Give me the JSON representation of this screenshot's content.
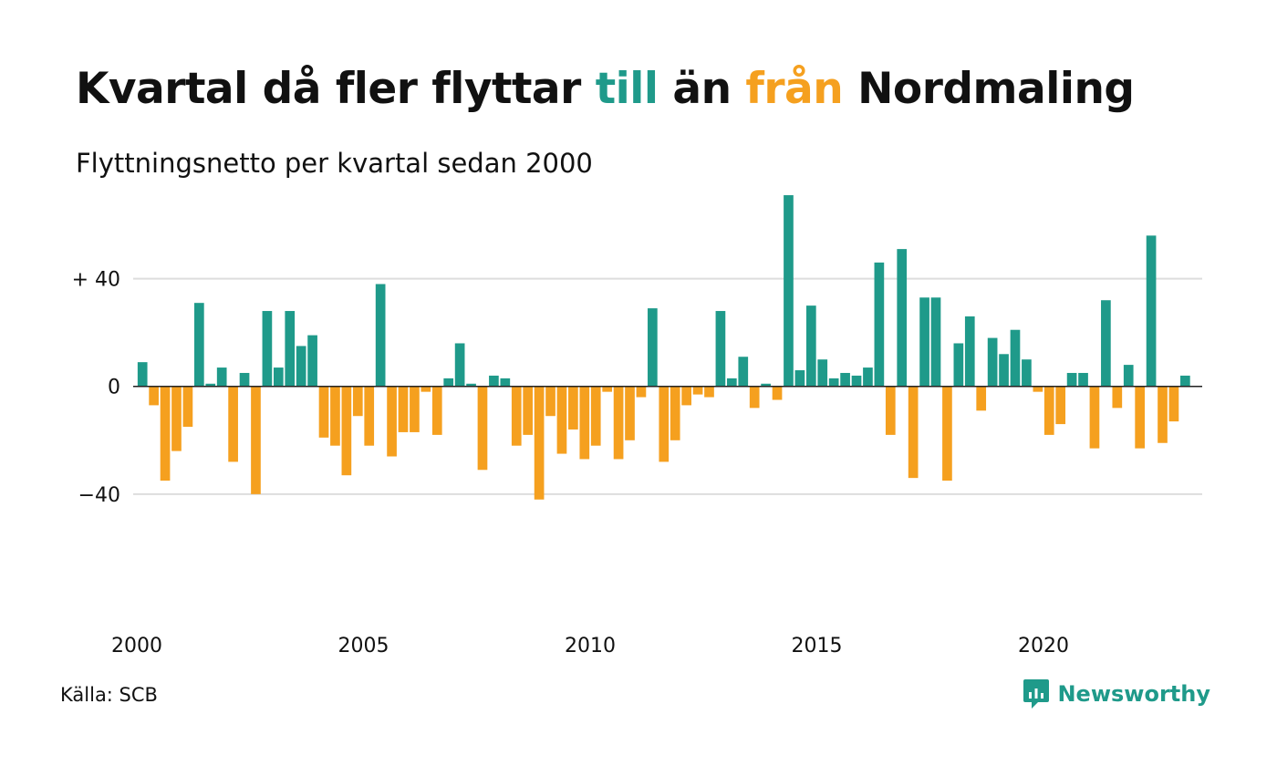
{
  "title": {
    "part1": "Kvartal då fler flyttar ",
    "highlight_up": "till",
    "part2": " än ",
    "highlight_down": "från",
    "part3": " Nordmaling"
  },
  "subtitle": "Flyttningsnetto per kvartal sedan 2000",
  "source": "Källa: SCB",
  "brand": {
    "name": "Newsworthy",
    "icon": "newsworthy-chart-bubble-icon"
  },
  "colors": {
    "positive": "#1f9a8a",
    "negative": "#f5a01f",
    "grid": "#dddddd"
  },
  "chart_data": {
    "type": "bar",
    "title": "Kvartal då fler flyttar till än från Nordmaling",
    "subtitle": "Flyttningsnetto per kvartal sedan 2000",
    "x_start": 2000,
    "x_step": 0.25,
    "xticks": [
      2000,
      2005,
      2010,
      2015,
      2020
    ],
    "xlim": [
      2000,
      2023.5
    ],
    "yticks": [
      {
        "value": 40,
        "label": "+ 40"
      },
      {
        "value": 0,
        "label": "0"
      },
      {
        "value": -40,
        "label": "−40"
      }
    ],
    "ylim": [
      -80,
      70
    ],
    "grid": true,
    "legend": "none",
    "values": [
      9,
      -7,
      -35,
      -24,
      -15,
      31,
      1,
      7,
      -28,
      5,
      -40,
      28,
      7,
      28,
      15,
      19,
      -19,
      -22,
      -33,
      -11,
      -22,
      38,
      -26,
      -17,
      -17,
      -2,
      -18,
      3,
      16,
      1,
      -31,
      4,
      3,
      -22,
      -18,
      -42,
      -11,
      -25,
      -16,
      -27,
      -22,
      -2,
      -27,
      -20,
      -4,
      29,
      -28,
      -20,
      -7,
      -3,
      -4,
      28,
      3,
      11,
      -8,
      1,
      -5,
      71,
      6,
      30,
      10,
      3,
      5,
      4,
      7,
      46,
      -18,
      51,
      -34,
      33,
      33,
      -35,
      16,
      26,
      -9,
      18,
      12,
      21,
      10,
      -2,
      -18,
      -14,
      5,
      5,
      -23,
      32,
      -8,
      8,
      -23,
      56,
      -21,
      -13,
      4
    ]
  }
}
